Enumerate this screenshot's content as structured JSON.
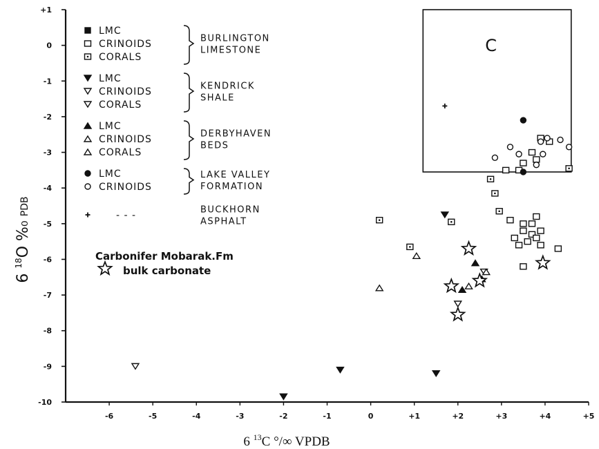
{
  "chart_data": {
    "type": "scatter",
    "xlabel": {
      "prefix": "6 ",
      "sup": "13",
      "rest": "C °/∞ VPDB"
    },
    "ylabel": {
      "prefix": "6 ",
      "sup": "18",
      "main": "O %₀",
      "small": "PDB"
    },
    "xlim": [
      -7,
      5
    ],
    "ylim": [
      -10,
      1
    ],
    "x_ticks": [
      {
        "value": -6,
        "label": "-6"
      },
      {
        "value": -5,
        "label": "-5"
      },
      {
        "value": -4,
        "label": "-4"
      },
      {
        "value": -3,
        "label": "-3"
      },
      {
        "value": -2,
        "label": "-2"
      },
      {
        "value": -1,
        "label": "-1"
      },
      {
        "value": 0,
        "label": "0"
      },
      {
        "value": 1,
        "label": "+1"
      },
      {
        "value": 2,
        "label": "+2"
      },
      {
        "value": 3,
        "label": "+3"
      },
      {
        "value": 4,
        "label": "+4"
      },
      {
        "value": 5,
        "label": "+5"
      }
    ],
    "y_ticks": [
      {
        "value": 1,
        "label": "+1"
      },
      {
        "value": 0,
        "label": "0"
      },
      {
        "value": -1,
        "label": "-1"
      },
      {
        "value": -2,
        "label": "-2"
      },
      {
        "value": -3,
        "label": "-3"
      },
      {
        "value": -4,
        "label": "-4"
      },
      {
        "value": -5,
        "label": "-5"
      },
      {
        "value": -6,
        "label": "-6"
      },
      {
        "value": -7,
        "label": "-7"
      },
      {
        "value": -8,
        "label": "-8"
      },
      {
        "value": -9,
        "label": "-9"
      },
      {
        "value": -10,
        "label": "-10"
      }
    ],
    "box": {
      "label": "C",
      "x": [
        1.2,
        4.6
      ],
      "y": [
        -3.55,
        1.0
      ]
    },
    "legend_groups": [
      {
        "name": [
          "BURLINGTON",
          "LIMESTONE"
        ],
        "entries": [
          {
            "marker": "square-filled",
            "label": "LMC"
          },
          {
            "marker": "square-open",
            "label": "CRINOIDS"
          },
          {
            "marker": "square-dot",
            "label": "CORALS"
          }
        ]
      },
      {
        "name": [
          "KENDRICK",
          "SHALE"
        ],
        "entries": [
          {
            "marker": "tri-down-filled",
            "label": "LMC"
          },
          {
            "marker": "tri-down-open",
            "label": "CRINOIDS"
          },
          {
            "marker": "tri-down-open",
            "label": "CORALS"
          }
        ]
      },
      {
        "name": [
          "DERBYHAVEN",
          "BEDS"
        ],
        "entries": [
          {
            "marker": "tri-up-filled",
            "label": "LMC"
          },
          {
            "marker": "tri-up-open",
            "label": "CRINOIDS"
          },
          {
            "marker": "tri-up-open",
            "label": "CORALS"
          }
        ]
      },
      {
        "name": [
          "LAKE VALLEY",
          "FORMATION"
        ],
        "entries": [
          {
            "marker": "circle-filled",
            "label": "LMC"
          },
          {
            "marker": "circle-open",
            "label": "CRINOIDS"
          }
        ]
      },
      {
        "name": [
          "BUCKHORN",
          "ASPHALT"
        ],
        "entries": [
          {
            "marker": "plus",
            "label": "- - -"
          }
        ]
      }
    ],
    "annotation": {
      "line1": "Carbonifer Mobarak.Fm",
      "line2": "bulk carbonate"
    },
    "series": [
      {
        "name": "Burlington Limestone crinoids",
        "marker": "square-open",
        "points": [
          [
            3.1,
            -3.5
          ],
          [
            3.4,
            -3.5
          ],
          [
            3.8,
            -3.2
          ],
          [
            4.1,
            -2.7
          ],
          [
            3.9,
            -2.6
          ],
          [
            3.7,
            -3.0
          ],
          [
            3.5,
            -3.3
          ],
          [
            3.2,
            -4.9
          ],
          [
            3.5,
            -5.0
          ],
          [
            3.7,
            -5.3
          ],
          [
            3.9,
            -5.2
          ],
          [
            4.3,
            -5.7
          ],
          [
            3.5,
            -6.2
          ],
          [
            3.3,
            -5.4
          ],
          [
            3.4,
            -5.6
          ],
          [
            3.6,
            -5.5
          ],
          [
            3.8,
            -5.4
          ],
          [
            3.9,
            -5.6
          ],
          [
            3.5,
            -5.2
          ],
          [
            3.7,
            -5.0
          ],
          [
            3.8,
            -4.8
          ]
        ]
      },
      {
        "name": "Burlington Limestone corals",
        "marker": "square-dot",
        "points": [
          [
            0.2,
            -4.9
          ],
          [
            0.9,
            -5.65
          ],
          [
            1.85,
            -4.95
          ],
          [
            2.95,
            -4.65
          ],
          [
            2.75,
            -3.75
          ],
          [
            2.85,
            -4.15
          ],
          [
            4.55,
            -3.45
          ]
        ]
      },
      {
        "name": "Lake Valley Formation LMC",
        "marker": "circle-filled",
        "points": [
          [
            3.5,
            -2.1
          ],
          [
            3.5,
            -3.55
          ]
        ]
      },
      {
        "name": "Lake Valley Formation crinoids",
        "marker": "circle-open",
        "points": [
          [
            3.2,
            -2.85
          ],
          [
            3.4,
            -3.05
          ],
          [
            3.9,
            -2.7
          ],
          [
            3.95,
            -3.05
          ],
          [
            4.05,
            -2.6
          ],
          [
            4.35,
            -2.65
          ],
          [
            4.55,
            -2.85
          ],
          [
            2.85,
            -3.15
          ],
          [
            3.8,
            -3.35
          ]
        ]
      },
      {
        "name": "Kendrick Shale LMC",
        "marker": "tri-down-filled",
        "points": [
          [
            1.7,
            -4.75
          ],
          [
            -0.7,
            -9.1
          ],
          [
            1.5,
            -9.2
          ],
          [
            -2.0,
            -9.85
          ]
        ]
      },
      {
        "name": "Kendrick Shale crinoids and corals",
        "marker": "tri-down-open",
        "points": [
          [
            -5.4,
            -9.0
          ],
          [
            2.0,
            -7.25
          ],
          [
            2.6,
            -6.35
          ]
        ]
      },
      {
        "name": "Derbyhaven Beds LMC",
        "marker": "tri-up-filled",
        "points": [
          [
            2.1,
            -6.85
          ],
          [
            2.4,
            -6.1
          ],
          [
            2.55,
            -6.55
          ]
        ]
      },
      {
        "name": "Derbyhaven Beds crinoids and corals",
        "marker": "tri-up-open",
        "points": [
          [
            0.2,
            -6.8
          ],
          [
            1.05,
            -5.9
          ],
          [
            2.25,
            -6.75
          ],
          [
            2.65,
            -6.35
          ]
        ]
      },
      {
        "name": "Buckhorn Asphalt",
        "marker": "plus",
        "points": [
          [
            1.7,
            -1.7
          ]
        ]
      },
      {
        "name": "Carbonifer Mobarak.Fm bulk carbonate",
        "marker": "star",
        "points": [
          [
            2.25,
            -5.7
          ],
          [
            1.85,
            -6.75
          ],
          [
            2.0,
            -7.55
          ],
          [
            2.5,
            -6.6
          ],
          [
            3.95,
            -6.1
          ]
        ]
      }
    ]
  }
}
